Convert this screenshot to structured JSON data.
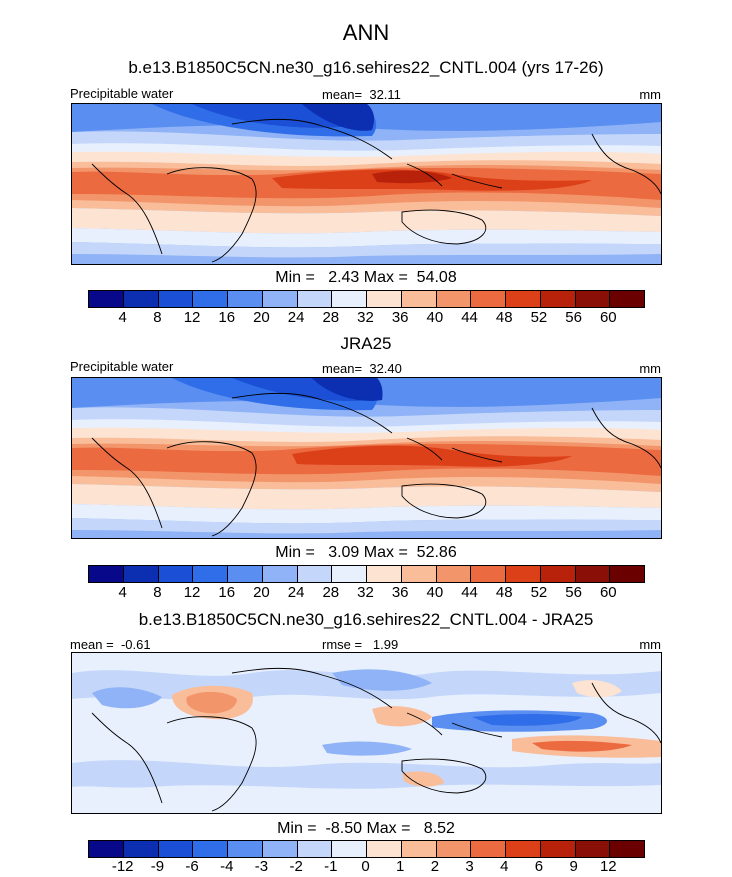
{
  "figure": {
    "title": "ANN",
    "panels": [
      {
        "title": "b.e13.B1850C5CN.ne30_g16.sehires22_CNTL.004 (yrs 17-26)",
        "left_label": "Precipitable water",
        "center_label": "mean=  32.11",
        "right_label": "mm",
        "minmax": "Min =   2.43 Max =  54.08"
      },
      {
        "title": "JRA25",
        "left_label": "Precipitable water",
        "center_label": "mean=  32.40",
        "right_label": "mm",
        "minmax": "Min =   3.09 Max =  52.86"
      },
      {
        "title": "b.e13.B1850C5CN.ne30_g16.sehires22_CNTL.004 - JRA25",
        "left_label": "mean =  -0.61",
        "center_label": "rmse =   1.99",
        "right_label": "mm",
        "minmax": "Min =  -8.50 Max =   8.52"
      }
    ]
  },
  "chart_data": [
    {
      "type": "heatmap",
      "title": "b.e13.B1850C5CN.ne30_g16.sehires22_CNTL.004 (yrs 17-26)",
      "variable": "Precipitable water",
      "units": "mm",
      "mean": 32.11,
      "min": 2.43,
      "max": 54.08,
      "colorbar_levels": [
        4,
        8,
        12,
        16,
        20,
        24,
        28,
        32,
        36,
        40,
        44,
        48,
        52,
        56,
        60
      ],
      "colors": [
        "#08088a",
        "#0b2fb0",
        "#1a4fd6",
        "#2f6ee8",
        "#5a8ef0",
        "#8fb3f6",
        "#c4d7fa",
        "#e9f0fd",
        "#fde3d1",
        "#f9bd9a",
        "#f3956a",
        "#ec6a40",
        "#dc4018",
        "#b8220a",
        "#8a0f06",
        "#6a0000"
      ]
    },
    {
      "type": "heatmap",
      "title": "JRA25",
      "variable": "Precipitable water",
      "units": "mm",
      "mean": 32.4,
      "min": 3.09,
      "max": 52.86,
      "colorbar_levels": [
        4,
        8,
        12,
        16,
        20,
        24,
        28,
        32,
        36,
        40,
        44,
        48,
        52,
        56,
        60
      ],
      "colors": [
        "#08088a",
        "#0b2fb0",
        "#1a4fd6",
        "#2f6ee8",
        "#5a8ef0",
        "#8fb3f6",
        "#c4d7fa",
        "#e9f0fd",
        "#fde3d1",
        "#f9bd9a",
        "#f3956a",
        "#ec6a40",
        "#dc4018",
        "#b8220a",
        "#8a0f06",
        "#6a0000"
      ]
    },
    {
      "type": "heatmap",
      "title": "b.e13.B1850C5CN.ne30_g16.sehires22_CNTL.004 - JRA25",
      "units": "mm",
      "mean": -0.61,
      "rmse": 1.99,
      "min": -8.5,
      "max": 8.52,
      "colorbar_levels": [
        -12,
        -9,
        -6,
        -4,
        -3,
        -2,
        -1,
        0,
        1,
        2,
        3,
        4,
        6,
        9,
        12
      ],
      "colors": [
        "#08088a",
        "#0b2fb0",
        "#1a4fd6",
        "#2f6ee8",
        "#5a8ef0",
        "#8fb3f6",
        "#c4d7fa",
        "#e9f0fd",
        "#fde3d1",
        "#f9bd9a",
        "#f3956a",
        "#ec6a40",
        "#dc4018",
        "#b8220a",
        "#8a0f06",
        "#6a0000"
      ]
    }
  ]
}
